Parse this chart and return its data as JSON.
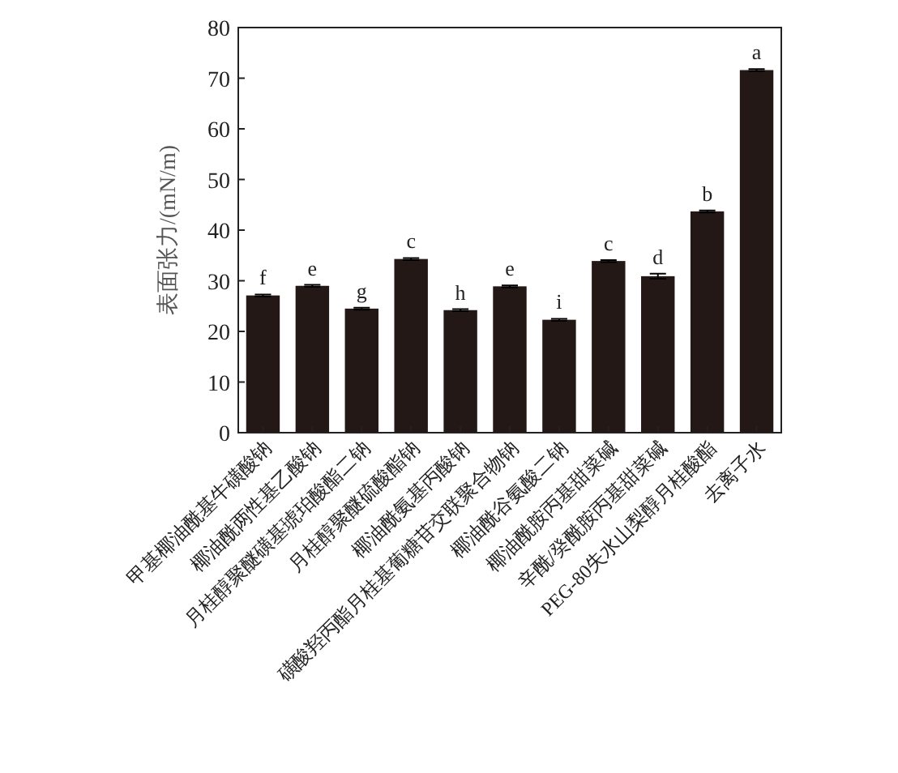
{
  "chart_data": {
    "type": "bar",
    "ylabel": "表面张力/(mN/m)",
    "categories": [
      "甲基椰油酰基牛磺酸钠",
      "椰油酰两性基乙酸钠",
      "月桂醇聚醚磺基琥珀酸酯二钠",
      "月桂醇聚醚硫酸酯钠",
      "椰油酰氨基丙酸钠",
      "磺酸羟丙酯月桂基葡糖苷交联聚合物钠",
      "椰油酰谷氨酸二钠",
      "椰油酰胺丙基甜菜碱",
      "辛酰/癸酰胺丙基甜菜碱",
      "PEG-80失水山梨醇月桂酸酯",
      "去离子水"
    ],
    "values": [
      27.1,
      29.0,
      24.5,
      34.3,
      24.2,
      28.9,
      22.3,
      33.9,
      30.9,
      43.7,
      71.6
    ],
    "errors": [
      0.2,
      0.2,
      0.2,
      0.2,
      0.2,
      0.2,
      0.2,
      0.2,
      0.5,
      0.2,
      0.2
    ],
    "color": "#231815",
    "ylim": [
      0,
      80
    ],
    "yticks": [
      0,
      10,
      20,
      30,
      40,
      50,
      60,
      70,
      80
    ],
    "annotations": [
      {
        "text": "f",
        "x": "甲基椰油酰基牛磺酸钠",
        "y": 27.1
      },
      {
        "text": "e",
        "x": "椰油酰两性基乙酸钠",
        "y": 29.0
      },
      {
        "text": "g",
        "x": "月桂醇聚醚磺基琥珀酸酯二钠",
        "y": 24.5
      },
      {
        "text": "c",
        "x": "月桂醇聚醚硫酸酯钠",
        "y": 34.3
      },
      {
        "text": "h",
        "x": "椰油酰氨基丙酸钠",
        "y": 24.2
      },
      {
        "text": "e",
        "x": "磺酸羟丙酯月桂基葡糖苷交联聚合物钠",
        "y": 28.9
      },
      {
        "text": "i",
        "x": "椰油酰谷氨酸二钠",
        "y": 22.3
      },
      {
        "text": "c",
        "x": "椰油酰胺丙基甜菜碱",
        "y": 33.9
      },
      {
        "text": "d",
        "x": "辛酰/癸酰胺丙基甜菜碱",
        "y": 30.9
      },
      {
        "text": "b",
        "x": "PEG-80失水山梨醇月桂酸酯",
        "y": 43.7
      },
      {
        "text": "a",
        "x": "去离子水",
        "y": 71.6
      }
    ]
  }
}
